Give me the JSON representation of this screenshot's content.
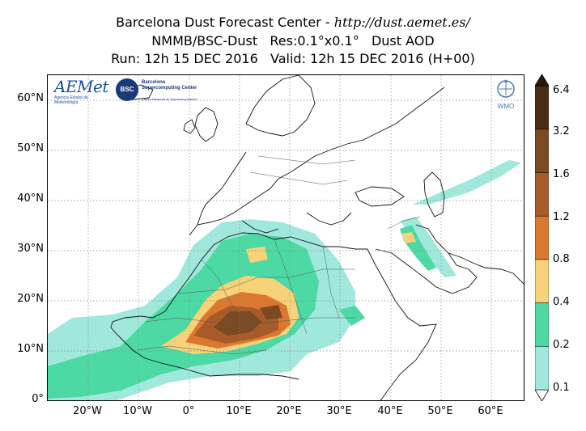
{
  "header": {
    "title_prefix": "Barcelona Dust Forecast Center - ",
    "title_url": "http://dust.aemet.es/",
    "line2": "NMMB/BSC-Dust   Res:0.1°x0.1°   Dust AOD",
    "line3": "Run: 12h 15 DEC 2016   Valid: 12h 15 DEC 2016 (H+00)"
  },
  "map": {
    "region": "North Africa, Europe and Middle East",
    "lon_range": [
      -28,
      67
    ],
    "lat_range": [
      0,
      65
    ],
    "lat_ticks": [
      "0°",
      "10°N",
      "20°N",
      "30°N",
      "40°N",
      "50°N",
      "60°N"
    ],
    "lon_ticks": [
      "20°W",
      "10°W",
      "0°",
      "10°E",
      "20°E",
      "30°E",
      "40°E",
      "50°E",
      "60°E"
    ],
    "grid": true,
    "field": "Dust AOD"
  },
  "colorbar": {
    "labels": [
      "0.1",
      "0.2",
      "0.4",
      "0.8",
      "1.2",
      "1.6",
      "3.2",
      "6.4"
    ],
    "colors": [
      "#a0e8dc",
      "#4dd9a3",
      "#f8d278",
      "#d9782e",
      "#a85b2a",
      "#7a4a22",
      "#4a2c14",
      "#2a1808"
    ]
  },
  "logos": {
    "aemet": "AEMet",
    "aemet_sub": "Agencia Estatal de Meteorología",
    "bsc": "BSC",
    "bsc_name": "Barcelona Supercomputing Center",
    "bsc_sub": "Centro Nacional de Supercomputación",
    "wmo": "WMO"
  }
}
